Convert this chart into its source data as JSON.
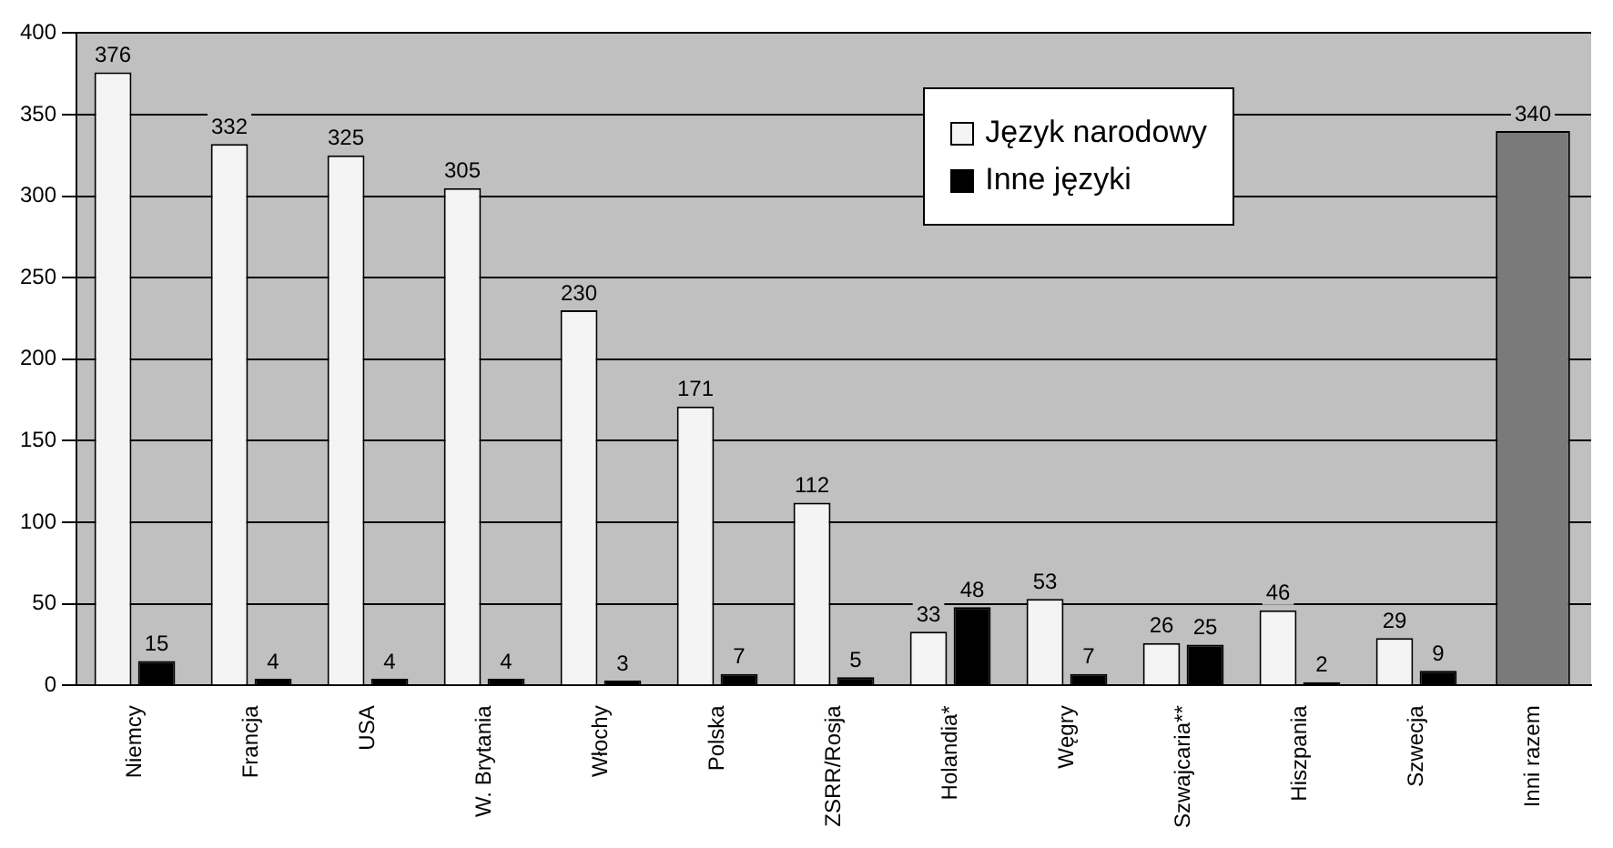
{
  "chart_data": {
    "type": "bar",
    "categories": [
      "Niemcy",
      "Francja",
      "USA",
      "W. Brytania",
      "Włochy",
      "Polska",
      "ZSRR/Rosja",
      "Holandia*",
      "Węgry",
      "Szwajcaria**",
      "Hiszpania",
      "Szwecja",
      "Inni razem"
    ],
    "series": [
      {
        "name": "Język narodowy",
        "color": "#f4f4f4",
        "colors": [
          "#f4f4f4",
          "#f4f4f4",
          "#f4f4f4",
          "#f4f4f4",
          "#f4f4f4",
          "#f4f4f4",
          "#f4f4f4",
          "#f4f4f4",
          "#f4f4f4",
          "#f4f4f4",
          "#f4f4f4",
          "#f4f4f4",
          "#7a7a7a"
        ],
        "values": [
          376,
          332,
          325,
          305,
          230,
          171,
          112,
          33,
          53,
          26,
          46,
          29,
          340
        ]
      },
      {
        "name": "Inne języki",
        "color": "#000000",
        "values": [
          15,
          4,
          4,
          4,
          3,
          7,
          5,
          48,
          7,
          25,
          2,
          9,
          null
        ]
      }
    ],
    "ylim": [
      0,
      400
    ],
    "yticks": [
      0,
      50,
      100,
      150,
      200,
      250,
      300,
      350,
      400
    ],
    "grid": "y",
    "legend": "top right",
    "data_labels": true
  }
}
